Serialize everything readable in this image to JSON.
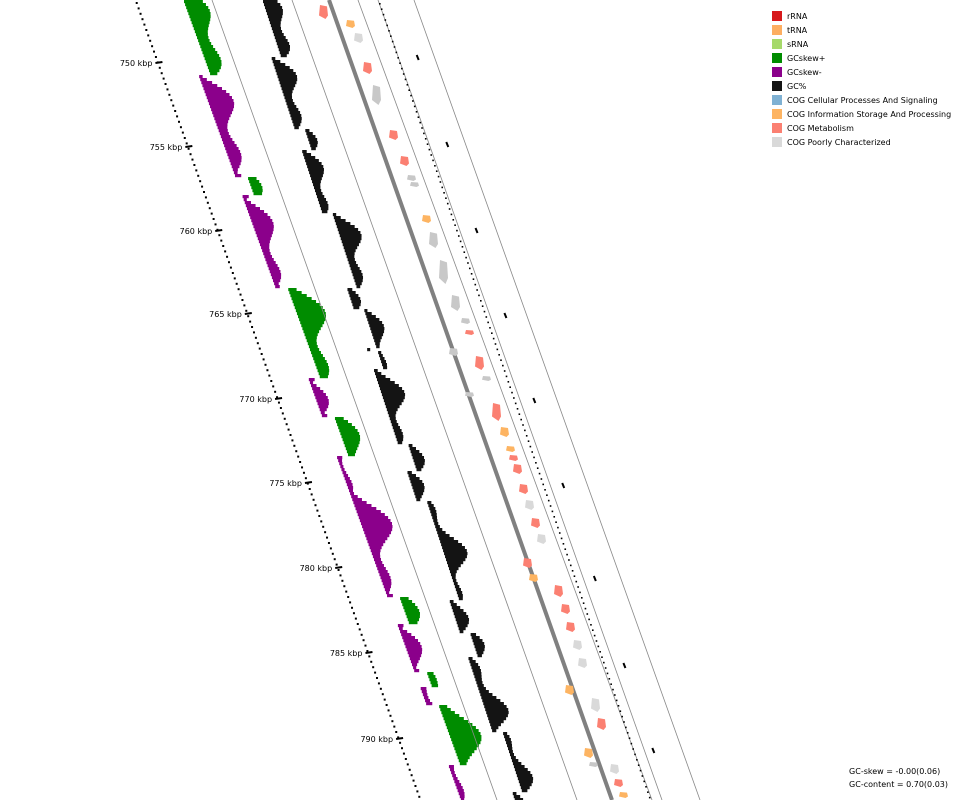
{
  "legend": {
    "items": [
      {
        "label": "rRNA",
        "color": "#d7191c"
      },
      {
        "label": "tRNA",
        "color": "#fdae61"
      },
      {
        "label": "sRNA",
        "color": "#a6d96a"
      },
      {
        "label": "GCskew+",
        "color": "#008c00"
      },
      {
        "label": "GCskew-",
        "color": "#8b008b"
      },
      {
        "label": "GC%",
        "color": "#141414"
      },
      {
        "label": "COG Cellular Processes And Signaling",
        "color": "#7fb1d3"
      },
      {
        "label": "COG Information Storage And Processing",
        "color": "#fdb462"
      },
      {
        "label": "COG Metabolism",
        "color": "#fb8072"
      },
      {
        "label": "COG Poorly Characterized",
        "color": "#d9d9d9"
      }
    ]
  },
  "axis": {
    "unit": "kbp",
    "labels": [
      "750 kbp",
      "755 kbp",
      "760 kbp",
      "765 kbp",
      "770 kbp",
      "775 kbp",
      "780 kbp",
      "785 kbp",
      "790 kbp"
    ]
  },
  "stats": {
    "gc_skew": "GC-skew = -0.00(0.06)",
    "gc_content": "GC-content = 0.70(0.03)"
  },
  "features": {
    "description_colors": {
      "skew_plus": "#008c00",
      "skew_minus": "#8b008b",
      "gc": "#141414",
      "backbone": "#808080"
    }
  }
}
